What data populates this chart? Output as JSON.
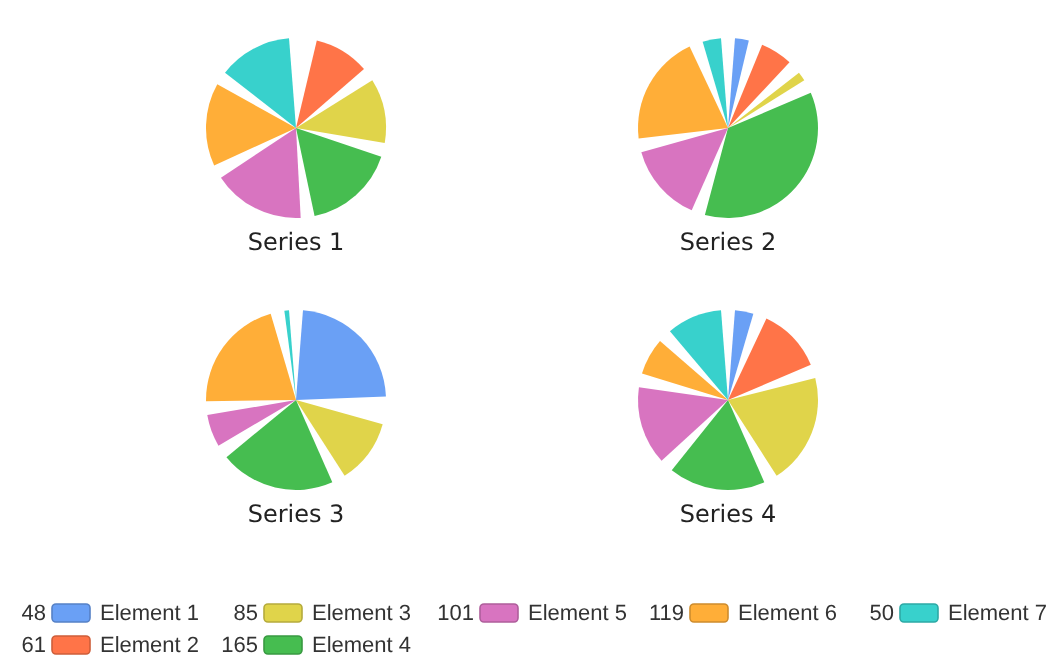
{
  "chart_data": {
    "type": "pie",
    "categories": [
      "Element 1",
      "Element 2",
      "Element 3",
      "Element 4",
      "Element 5",
      "Element 6",
      "Element 7"
    ],
    "colors": [
      "#6aa0f5",
      "#ff7448",
      "#e0d44a",
      "#46bd50",
      "#d874c0",
      "#ffae38",
      "#38d1cc"
    ],
    "legend": "bottom",
    "totals": [
      "48",
      "61",
      "85",
      "165",
      "101",
      "119",
      "50"
    ],
    "series": [
      {
        "name": "Series 1",
        "values": [
          0,
          12,
          14,
          20,
          20,
          18,
          16
        ]
      },
      {
        "name": "Series 2",
        "values": [
          3,
          7,
          2,
          43,
          17,
          24,
          4
        ]
      },
      {
        "name": "Series 3",
        "values": [
          28,
          0,
          14,
          25,
          7,
          25,
          1
        ]
      },
      {
        "name": "Series 4",
        "values": [
          4,
          14,
          24,
          21,
          17,
          8,
          12
        ]
      }
    ]
  }
}
